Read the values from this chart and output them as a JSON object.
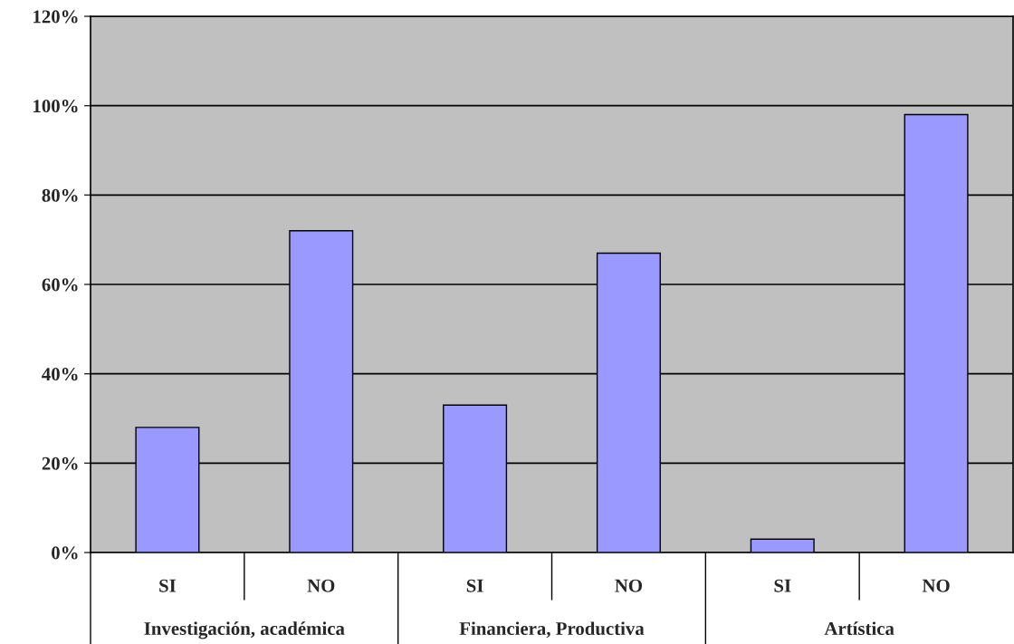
{
  "chart_data": {
    "type": "bar",
    "categories": [
      "SI",
      "NO",
      "SI",
      "NO",
      "SI",
      "NO"
    ],
    "values": [
      28,
      72,
      33,
      67,
      3,
      98
    ],
    "color": "#9999ff",
    "ylim": [
      0,
      120
    ],
    "yticks": [
      {
        "value": 0,
        "label": "0%"
      },
      {
        "value": 20,
        "label": "20%"
      },
      {
        "value": 40,
        "label": "40%"
      },
      {
        "value": 60,
        "label": "60%"
      },
      {
        "value": 80,
        "label": "80%"
      },
      {
        "value": 100,
        "label": "100%"
      },
      {
        "value": 120,
        "label": "120%"
      }
    ],
    "grid": "y",
    "annotations": [
      "Investigación, académica",
      "Financiera, Productiva",
      "Artística"
    ]
  }
}
